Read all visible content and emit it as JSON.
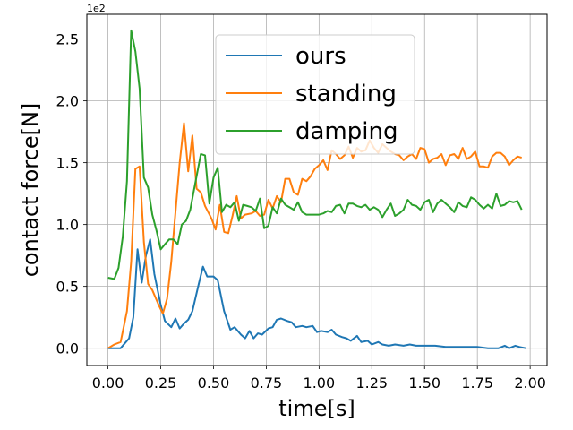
{
  "chart_data": {
    "type": "line",
    "xlabel": "time[s]",
    "ylabel": "contact force[N]",
    "y_offset_label": "1e2",
    "xlim": [
      -0.1,
      2.08
    ],
    "ylim": [
      -0.14,
      2.7
    ],
    "x_ticks": [
      0.0,
      0.25,
      0.5,
      0.75,
      1.0,
      1.25,
      1.5,
      1.75,
      2.0
    ],
    "x_tick_labels": [
      "0.00",
      "0.25",
      "0.50",
      "0.75",
      "1.00",
      "1.25",
      "1.50",
      "1.75",
      "2.00"
    ],
    "y_ticks": [
      0.0,
      0.5,
      1.0,
      1.5,
      2.0,
      2.5
    ],
    "y_tick_labels": [
      "0.0",
      "0.5",
      "1.0",
      "1.5",
      "2.0",
      "2.5"
    ],
    "grid": true,
    "legend_position": "top-right",
    "series": [
      {
        "name": "ours",
        "color": "#1f77b4",
        "points": [
          [
            0.0,
            0.0
          ],
          [
            0.03,
            0.0
          ],
          [
            0.06,
            0.0
          ],
          [
            0.1,
            0.08
          ],
          [
            0.12,
            0.25
          ],
          [
            0.14,
            0.8
          ],
          [
            0.16,
            0.53
          ],
          [
            0.18,
            0.75
          ],
          [
            0.2,
            0.88
          ],
          [
            0.22,
            0.6
          ],
          [
            0.25,
            0.35
          ],
          [
            0.27,
            0.22
          ],
          [
            0.3,
            0.17
          ],
          [
            0.32,
            0.24
          ],
          [
            0.34,
            0.16
          ],
          [
            0.36,
            0.2
          ],
          [
            0.38,
            0.23
          ],
          [
            0.4,
            0.3
          ],
          [
            0.43,
            0.52
          ],
          [
            0.45,
            0.66
          ],
          [
            0.47,
            0.58
          ],
          [
            0.5,
            0.58
          ],
          [
            0.52,
            0.55
          ],
          [
            0.55,
            0.3
          ],
          [
            0.58,
            0.15
          ],
          [
            0.6,
            0.17
          ],
          [
            0.63,
            0.11
          ],
          [
            0.65,
            0.08
          ],
          [
            0.67,
            0.14
          ],
          [
            0.69,
            0.08
          ],
          [
            0.71,
            0.12
          ],
          [
            0.73,
            0.11
          ],
          [
            0.76,
            0.16
          ],
          [
            0.78,
            0.17
          ],
          [
            0.8,
            0.23
          ],
          [
            0.82,
            0.24
          ],
          [
            0.85,
            0.22
          ],
          [
            0.87,
            0.21
          ],
          [
            0.89,
            0.17
          ],
          [
            0.92,
            0.18
          ],
          [
            0.94,
            0.17
          ],
          [
            0.97,
            0.18
          ],
          [
            0.99,
            0.13
          ],
          [
            1.01,
            0.14
          ],
          [
            1.04,
            0.13
          ],
          [
            1.06,
            0.15
          ],
          [
            1.08,
            0.11
          ],
          [
            1.11,
            0.09
          ],
          [
            1.13,
            0.08
          ],
          [
            1.15,
            0.06
          ],
          [
            1.18,
            0.1
          ],
          [
            1.2,
            0.05
          ],
          [
            1.23,
            0.06
          ],
          [
            1.25,
            0.03
          ],
          [
            1.28,
            0.05
          ],
          [
            1.3,
            0.03
          ],
          [
            1.33,
            0.02
          ],
          [
            1.36,
            0.03
          ],
          [
            1.4,
            0.02
          ],
          [
            1.43,
            0.03
          ],
          [
            1.46,
            0.02
          ],
          [
            1.5,
            0.02
          ],
          [
            1.55,
            0.02
          ],
          [
            1.6,
            0.01
          ],
          [
            1.65,
            0.01
          ],
          [
            1.7,
            0.01
          ],
          [
            1.75,
            0.01
          ],
          [
            1.8,
            0.0
          ],
          [
            1.85,
            0.0
          ],
          [
            1.88,
            0.02
          ],
          [
            1.9,
            0.0
          ],
          [
            1.93,
            0.02
          ],
          [
            1.95,
            0.01
          ],
          [
            1.98,
            0.0
          ]
        ]
      },
      {
        "name": "standing",
        "color": "#ff7f0e",
        "points": [
          [
            0.0,
            0.0
          ],
          [
            0.03,
            0.03
          ],
          [
            0.06,
            0.05
          ],
          [
            0.09,
            0.3
          ],
          [
            0.11,
            0.7
          ],
          [
            0.13,
            1.45
          ],
          [
            0.15,
            1.47
          ],
          [
            0.17,
            0.86
          ],
          [
            0.19,
            0.52
          ],
          [
            0.21,
            0.47
          ],
          [
            0.24,
            0.35
          ],
          [
            0.26,
            0.28
          ],
          [
            0.28,
            0.4
          ],
          [
            0.3,
            0.7
          ],
          [
            0.32,
            1.1
          ],
          [
            0.34,
            1.5
          ],
          [
            0.36,
            1.82
          ],
          [
            0.38,
            1.43
          ],
          [
            0.4,
            1.72
          ],
          [
            0.42,
            1.29
          ],
          [
            0.44,
            1.26
          ],
          [
            0.46,
            1.15
          ],
          [
            0.49,
            1.05
          ],
          [
            0.51,
            0.96
          ],
          [
            0.53,
            1.16
          ],
          [
            0.55,
            0.94
          ],
          [
            0.57,
            0.93
          ],
          [
            0.59,
            1.07
          ],
          [
            0.61,
            1.23
          ],
          [
            0.63,
            1.05
          ],
          [
            0.65,
            1.08
          ],
          [
            0.68,
            1.09
          ],
          [
            0.7,
            1.11
          ],
          [
            0.72,
            1.07
          ],
          [
            0.74,
            1.08
          ],
          [
            0.76,
            1.2
          ],
          [
            0.78,
            1.13
          ],
          [
            0.8,
            1.23
          ],
          [
            0.82,
            1.18
          ],
          [
            0.84,
            1.37
          ],
          [
            0.86,
            1.37
          ],
          [
            0.88,
            1.26
          ],
          [
            0.9,
            1.24
          ],
          [
            0.92,
            1.37
          ],
          [
            0.94,
            1.35
          ],
          [
            0.96,
            1.39
          ],
          [
            0.98,
            1.45
          ],
          [
            1.0,
            1.48
          ],
          [
            1.02,
            1.52
          ],
          [
            1.04,
            1.44
          ],
          [
            1.06,
            1.6
          ],
          [
            1.08,
            1.57
          ],
          [
            1.1,
            1.53
          ],
          [
            1.12,
            1.56
          ],
          [
            1.14,
            1.63
          ],
          [
            1.16,
            1.54
          ],
          [
            1.18,
            1.62
          ],
          [
            1.2,
            1.59
          ],
          [
            1.22,
            1.6
          ],
          [
            1.24,
            1.68
          ],
          [
            1.26,
            1.62
          ],
          [
            1.28,
            1.58
          ],
          [
            1.3,
            1.65
          ],
          [
            1.32,
            1.62
          ],
          [
            1.34,
            1.59
          ],
          [
            1.36,
            1.57
          ],
          [
            1.38,
            1.56
          ],
          [
            1.4,
            1.52
          ],
          [
            1.42,
            1.55
          ],
          [
            1.44,
            1.57
          ],
          [
            1.46,
            1.53
          ],
          [
            1.48,
            1.62
          ],
          [
            1.5,
            1.61
          ],
          [
            1.52,
            1.5
          ],
          [
            1.54,
            1.53
          ],
          [
            1.56,
            1.54
          ],
          [
            1.58,
            1.57
          ],
          [
            1.6,
            1.48
          ],
          [
            1.62,
            1.56
          ],
          [
            1.64,
            1.57
          ],
          [
            1.66,
            1.53
          ],
          [
            1.68,
            1.62
          ],
          [
            1.7,
            1.53
          ],
          [
            1.72,
            1.55
          ],
          [
            1.74,
            1.59
          ],
          [
            1.76,
            1.47
          ],
          [
            1.78,
            1.47
          ],
          [
            1.8,
            1.46
          ],
          [
            1.82,
            1.55
          ],
          [
            1.84,
            1.58
          ],
          [
            1.86,
            1.58
          ],
          [
            1.88,
            1.55
          ],
          [
            1.9,
            1.48
          ],
          [
            1.92,
            1.52
          ],
          [
            1.94,
            1.55
          ],
          [
            1.96,
            1.54
          ]
        ]
      },
      {
        "name": "damping",
        "color": "#2ca02c",
        "points": [
          [
            0.0,
            0.57
          ],
          [
            0.03,
            0.56
          ],
          [
            0.05,
            0.65
          ],
          [
            0.07,
            0.9
          ],
          [
            0.09,
            1.35
          ],
          [
            0.11,
            2.57
          ],
          [
            0.13,
            2.4
          ],
          [
            0.15,
            2.1
          ],
          [
            0.17,
            1.38
          ],
          [
            0.19,
            1.3
          ],
          [
            0.21,
            1.08
          ],
          [
            0.23,
            0.95
          ],
          [
            0.25,
            0.8
          ],
          [
            0.27,
            0.84
          ],
          [
            0.29,
            0.88
          ],
          [
            0.31,
            0.88
          ],
          [
            0.33,
            0.84
          ],
          [
            0.35,
            1.0
          ],
          [
            0.37,
            1.03
          ],
          [
            0.39,
            1.12
          ],
          [
            0.41,
            1.3
          ],
          [
            0.44,
            1.57
          ],
          [
            0.46,
            1.56
          ],
          [
            0.48,
            1.17
          ],
          [
            0.5,
            1.38
          ],
          [
            0.52,
            1.46
          ],
          [
            0.54,
            1.1
          ],
          [
            0.56,
            1.16
          ],
          [
            0.58,
            1.14
          ],
          [
            0.6,
            1.18
          ],
          [
            0.62,
            1.03
          ],
          [
            0.64,
            1.16
          ],
          [
            0.66,
            1.15
          ],
          [
            0.68,
            1.14
          ],
          [
            0.7,
            1.11
          ],
          [
            0.72,
            1.21
          ],
          [
            0.74,
            0.97
          ],
          [
            0.76,
            0.99
          ],
          [
            0.78,
            1.14
          ],
          [
            0.8,
            1.09
          ],
          [
            0.82,
            1.21
          ],
          [
            0.84,
            1.16
          ],
          [
            0.86,
            1.14
          ],
          [
            0.88,
            1.12
          ],
          [
            0.9,
            1.18
          ],
          [
            0.92,
            1.1
          ],
          [
            0.94,
            1.08
          ],
          [
            0.96,
            1.08
          ],
          [
            0.98,
            1.08
          ],
          [
            1.0,
            1.08
          ],
          [
            1.02,
            1.09
          ],
          [
            1.04,
            1.11
          ],
          [
            1.06,
            1.1
          ],
          [
            1.08,
            1.15
          ],
          [
            1.1,
            1.16
          ],
          [
            1.12,
            1.09
          ],
          [
            1.14,
            1.17
          ],
          [
            1.16,
            1.17
          ],
          [
            1.18,
            1.15
          ],
          [
            1.2,
            1.14
          ],
          [
            1.22,
            1.16
          ],
          [
            1.24,
            1.12
          ],
          [
            1.26,
            1.14
          ],
          [
            1.28,
            1.12
          ],
          [
            1.3,
            1.06
          ],
          [
            1.32,
            1.12
          ],
          [
            1.34,
            1.17
          ],
          [
            1.36,
            1.07
          ],
          [
            1.38,
            1.09
          ],
          [
            1.4,
            1.12
          ],
          [
            1.42,
            1.2
          ],
          [
            1.44,
            1.16
          ],
          [
            1.46,
            1.15
          ],
          [
            1.48,
            1.12
          ],
          [
            1.5,
            1.18
          ],
          [
            1.52,
            1.2
          ],
          [
            1.54,
            1.1
          ],
          [
            1.56,
            1.17
          ],
          [
            1.58,
            1.2
          ],
          [
            1.6,
            1.17
          ],
          [
            1.62,
            1.14
          ],
          [
            1.64,
            1.1
          ],
          [
            1.66,
            1.18
          ],
          [
            1.68,
            1.15
          ],
          [
            1.7,
            1.14
          ],
          [
            1.72,
            1.22
          ],
          [
            1.74,
            1.2
          ],
          [
            1.76,
            1.16
          ],
          [
            1.78,
            1.13
          ],
          [
            1.8,
            1.16
          ],
          [
            1.82,
            1.13
          ],
          [
            1.84,
            1.25
          ],
          [
            1.86,
            1.15
          ],
          [
            1.88,
            1.16
          ],
          [
            1.9,
            1.19
          ],
          [
            1.92,
            1.18
          ],
          [
            1.94,
            1.19
          ],
          [
            1.96,
            1.12
          ]
        ]
      }
    ]
  }
}
